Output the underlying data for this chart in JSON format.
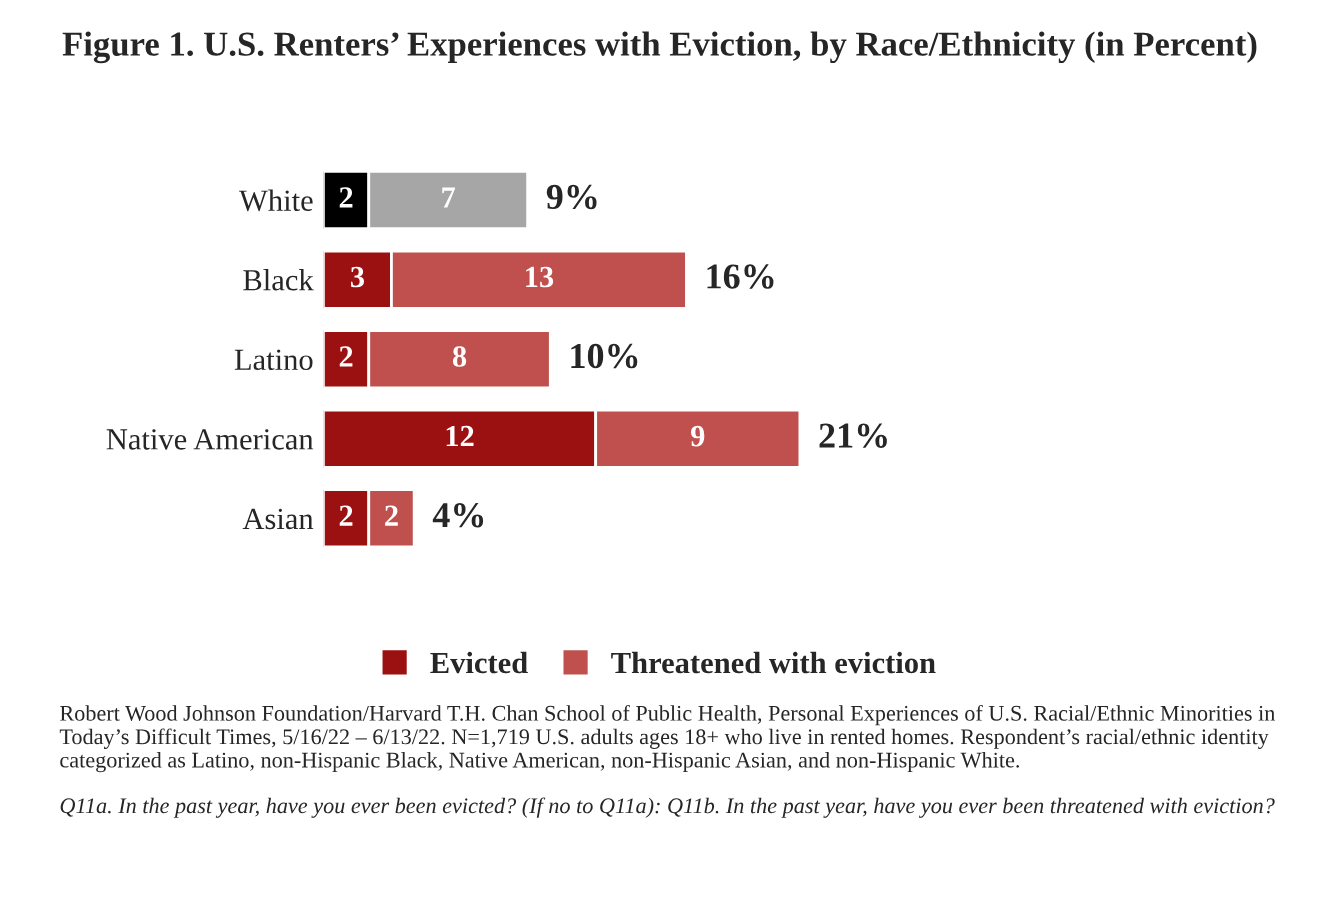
{
  "chart_data": {
    "type": "bar",
    "orientation": "horizontal",
    "stacked": true,
    "title": "Figure 1. U.S. Renters’ Experiences with Eviction, by Race/Ethnicity (in Percent)",
    "categories": [
      "White",
      "Black",
      "Latino",
      "Native American",
      "Asian"
    ],
    "series": [
      {
        "name": "Evicted",
        "color": "#9b1010",
        "colors": [
          "#000000",
          "#9b1010",
          "#9b1010",
          "#9b1010",
          "#9b1010"
        ],
        "values": [
          2,
          3,
          2,
          12,
          2
        ]
      },
      {
        "name": "Threatened with eviction",
        "color": "#c0504d",
        "colors": [
          "#a6a6a6",
          "#c0504d",
          "#c0504d",
          "#c0504d",
          "#c0504d"
        ],
        "values": [
          7,
          13,
          8,
          9,
          2
        ]
      }
    ],
    "data_labels": true,
    "totals": [
      "9%",
      "16%",
      "10%",
      "21%",
      "4%"
    ],
    "legend": "bottom",
    "grid": false,
    "tick_labels": "y",
    "annotations": [
      "Robert Wood Johnson Foundation/Harvard T.H. Chan School of Public Health, Personal Experiences of U.S. Racial/Ethnic Minorities in Today’s Difficult Times, 5/16/22 – 6/13/22. N=1,719 U.S. adults ages 18+ who live in rented homes. Respondent’s racial/ethnic identity categorized as Latino, non-Hispanic Black, Native American, non-Hispanic Asian, and non-Hispanic White.",
      "Q11a. In the past year, have you ever been evicted? (If no to Q11a): Q11b. In the past year, have you ever been threatened with eviction?"
    ]
  }
}
